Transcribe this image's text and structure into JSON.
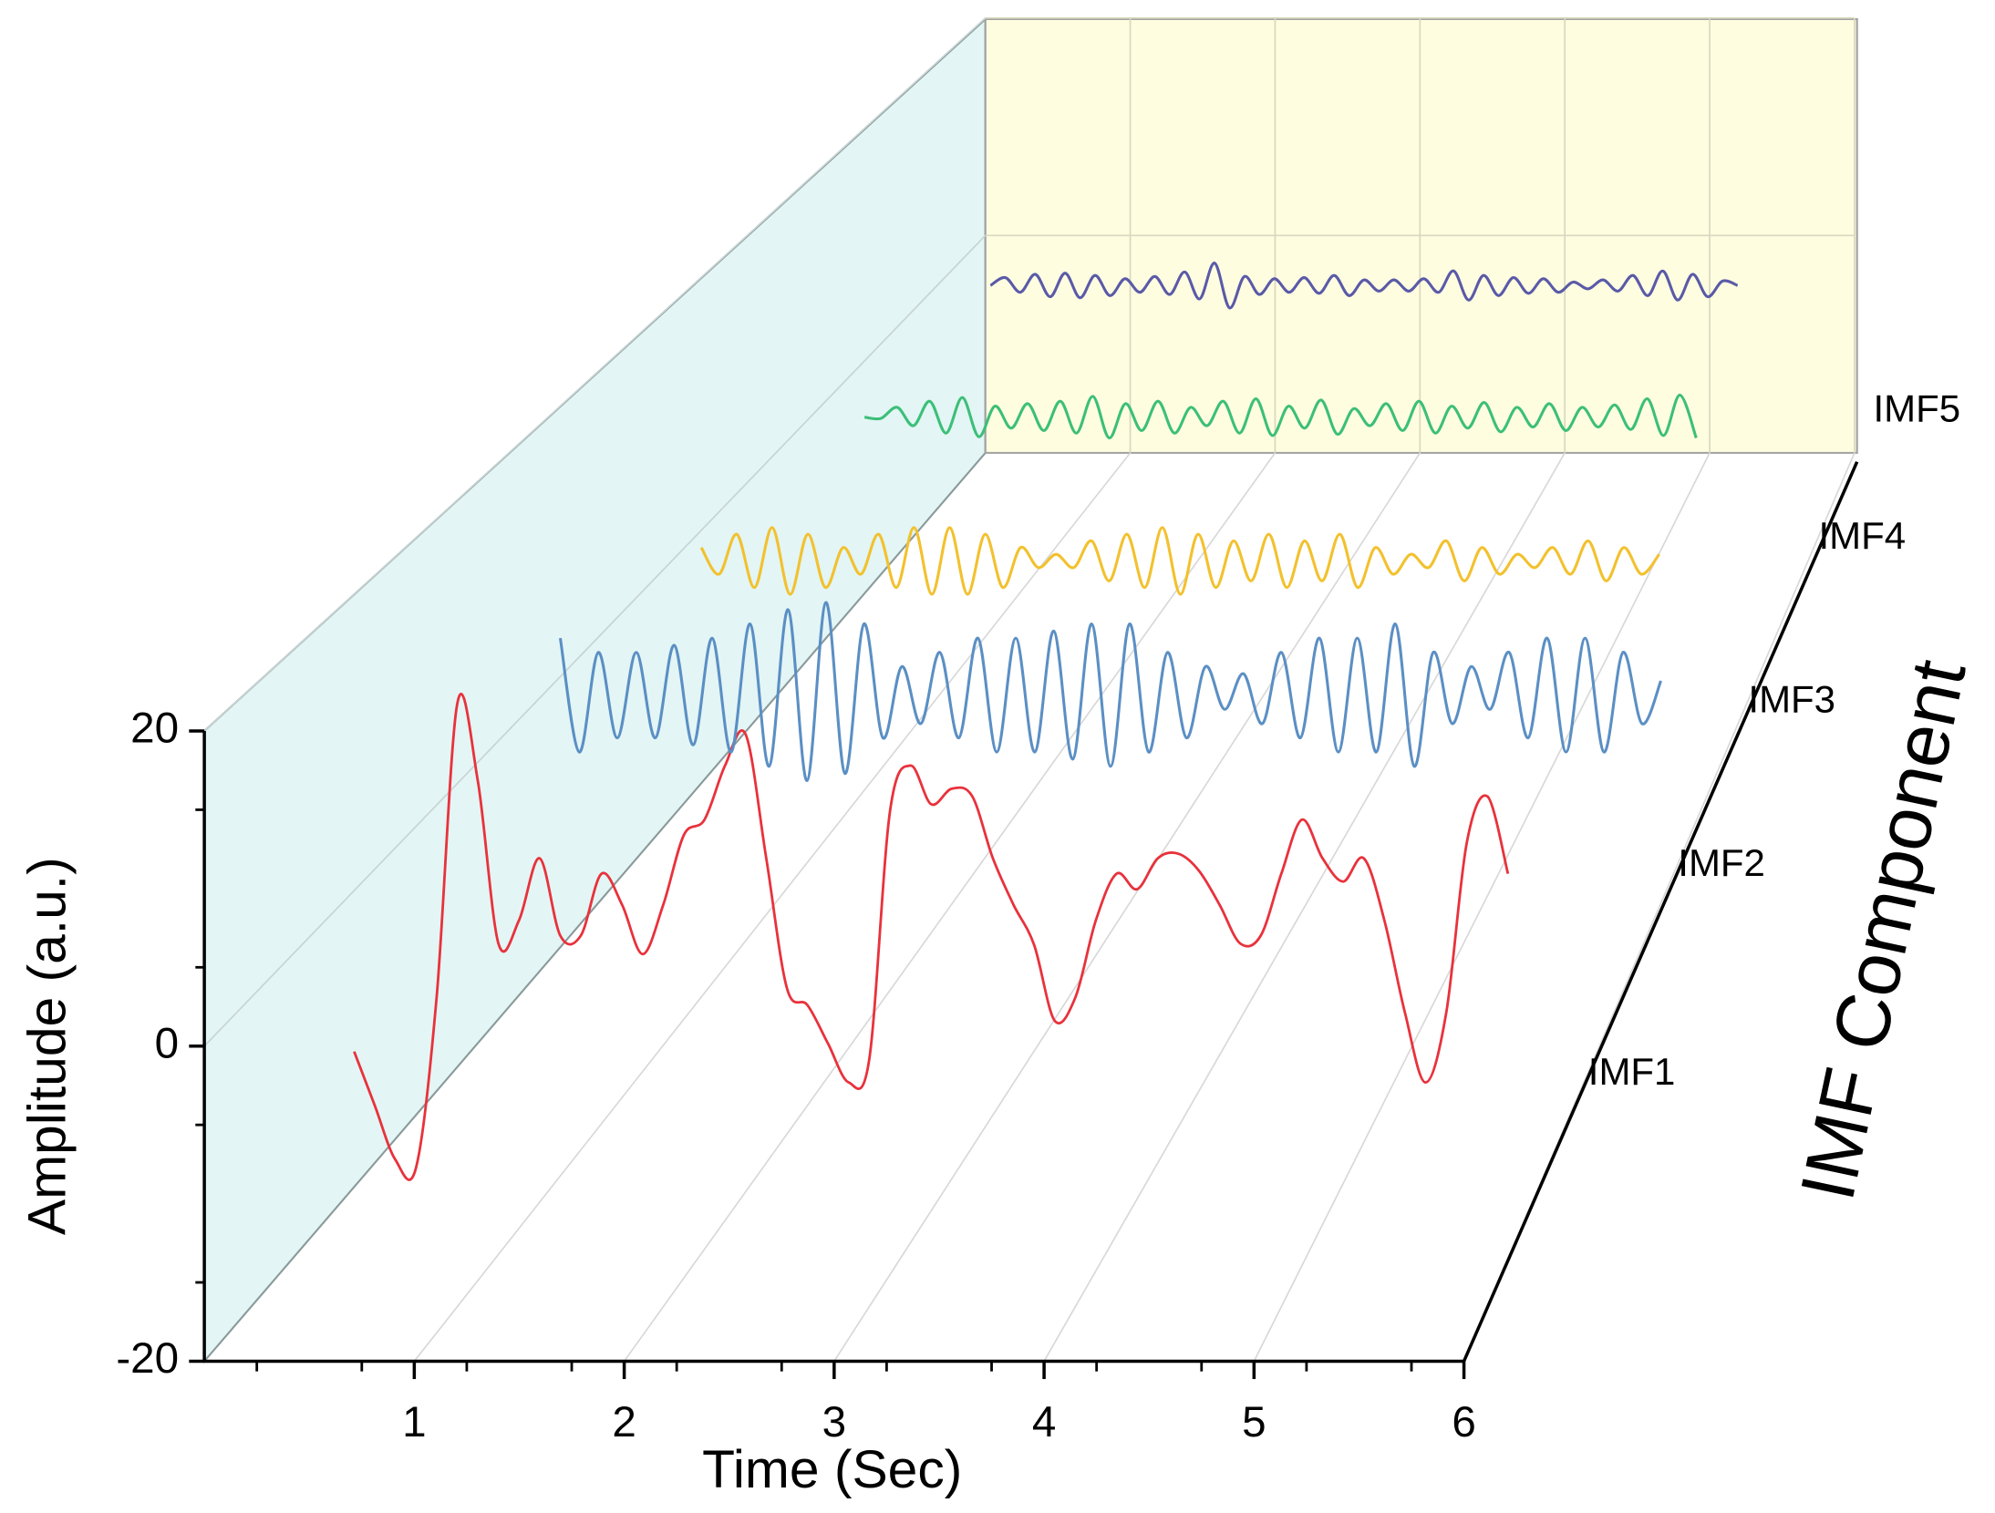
{
  "chart_data": {
    "type": "waterfall3d",
    "xlabel": "Time (Sec)",
    "ylabel": "Amplitude (a.u.)",
    "zlabel": "IMF Component",
    "xlim": [
      0,
      6
    ],
    "xticks": [
      1,
      2,
      3,
      4,
      5,
      6
    ],
    "ylim": [
      -20,
      20
    ],
    "yticks": [
      -20,
      0,
      20
    ],
    "grid": true,
    "x": [
      0.4,
      0.5,
      0.6,
      0.7,
      0.8,
      0.9,
      1.0,
      1.1,
      1.2,
      1.3,
      1.4,
      1.5,
      1.6,
      1.7,
      1.8,
      1.9,
      2.0,
      2.1,
      2.2,
      2.3,
      2.4,
      2.5,
      2.6,
      2.7,
      2.8,
      2.9,
      3.0,
      3.1,
      3.2,
      3.3,
      3.4,
      3.5,
      3.6,
      3.7,
      3.8,
      3.9,
      4.0,
      4.1,
      4.2,
      4.3,
      4.4,
      4.5,
      4.6,
      4.7,
      4.8,
      4.9,
      5.0,
      5.1,
      5.2,
      5.3,
      5.4,
      5.5,
      5.6,
      5.7,
      5.8,
      5.9,
      6.0,
      6.1,
      6.2,
      6.3,
      6.4
    ],
    "series": [
      {
        "name": "IMF1",
        "color": "#e8323c",
        "values": [
          null,
          -3.5,
          -7,
          -10.5,
          -11,
          0,
          19,
          14,
          3.5,
          5,
          9,
          4,
          4,
          8,
          6,
          2.8,
          6,
          10.5,
          11.5,
          15,
          17,
          9,
          0.6,
          -0.5,
          -3,
          -5.5,
          -4,
          12,
          15,
          12.5,
          13.5,
          13,
          9,
          6,
          3.4,
          -1.5,
          0,
          5,
          8,
          7,
          9,
          9.3,
          8.2,
          6,
          3.5,
          4,
          8,
          11.5,
          9,
          7.5,
          9,
          5,
          -1,
          -5.5,
          -1,
          10,
          13,
          8,
          null,
          null,
          null
        ]
      },
      {
        "name": "IMF2",
        "color": "#5b8fc4",
        "values": [
          null,
          null,
          11,
          3,
          10,
          4,
          10,
          4,
          10.5,
          3.5,
          11,
          3,
          12,
          2,
          13,
          1,
          13.5,
          1.5,
          12,
          4,
          9,
          5,
          10,
          4,
          11,
          3,
          11,
          3,
          11.5,
          2.5,
          12,
          2,
          12,
          3,
          10,
          4,
          9,
          6,
          8.5,
          5,
          10,
          4,
          11,
          3,
          11,
          3,
          12,
          2,
          10,
          5,
          9,
          6,
          10,
          4,
          11,
          3,
          11,
          3,
          10,
          5,
          8
        ]
      },
      {
        "name": "IMF3",
        "color": "#f2c12e",
        "values": [
          null,
          null,
          7,
          5,
          8,
          4,
          8.5,
          3.5,
          8,
          4,
          7,
          5,
          8,
          4,
          8.5,
          3.5,
          8.5,
          3.5,
          8,
          4,
          7,
          5.5,
          6.5,
          5.5,
          7.5,
          4.5,
          8,
          4,
          8.5,
          3.5,
          8,
          4,
          7.5,
          4.5,
          8,
          4,
          7.5,
          4.5,
          8,
          4,
          7,
          5,
          6.5,
          5.5,
          7.5,
          4.5,
          7,
          5,
          6.5,
          5.5,
          7,
          5,
          7.5,
          4.5,
          7,
          5,
          6.5,
          null,
          null,
          null,
          null
        ]
      },
      {
        "name": "IMF4",
        "color": "#3cbf78",
        "values": [
          null,
          null,
          3.7,
          3.6,
          4.5,
          3,
          5,
          2.4,
          5.3,
          2.1,
          4.6,
          2.8,
          4.8,
          2.6,
          5,
          2.4,
          5.4,
          2,
          4.8,
          2.6,
          5,
          2.4,
          4.5,
          3,
          5,
          2.4,
          5.2,
          2.2,
          4.6,
          2.8,
          5.1,
          2.3,
          4.4,
          3,
          4.8,
          2.6,
          5,
          2.4,
          4.6,
          2.8,
          4.9,
          2.5,
          4.5,
          2.9,
          4.8,
          2.6,
          4.5,
          2.9,
          4.7,
          2.7,
          5.2,
          2.2,
          5.5,
          2,
          null,
          null,
          null,
          null,
          null,
          null,
          null
        ]
      },
      {
        "name": "IMF5",
        "color": "#5a5aa8",
        "values": [
          0.6,
          1.3,
          0,
          1.6,
          -0.4,
          1.7,
          -0.5,
          1.5,
          -0.3,
          1.2,
          0,
          1.4,
          -0.2,
          1.8,
          -0.6,
          2.6,
          -1.4,
          1.4,
          -0.2,
          1.2,
          0,
          1.3,
          -0.1,
          1.5,
          -0.3,
          1.1,
          0.1,
          1.1,
          0.1,
          1.2,
          0,
          1.9,
          -0.7,
          1.5,
          -0.3,
          1.3,
          -0.1,
          1.2,
          0,
          0.9,
          0.3,
          1.1,
          0.1,
          1.5,
          -0.3,
          1.9,
          -0.7,
          1.6,
          -0.4,
          1,
          0.6,
          null,
          null,
          null,
          null,
          null,
          null,
          null,
          null,
          null,
          null
        ]
      }
    ]
  }
}
